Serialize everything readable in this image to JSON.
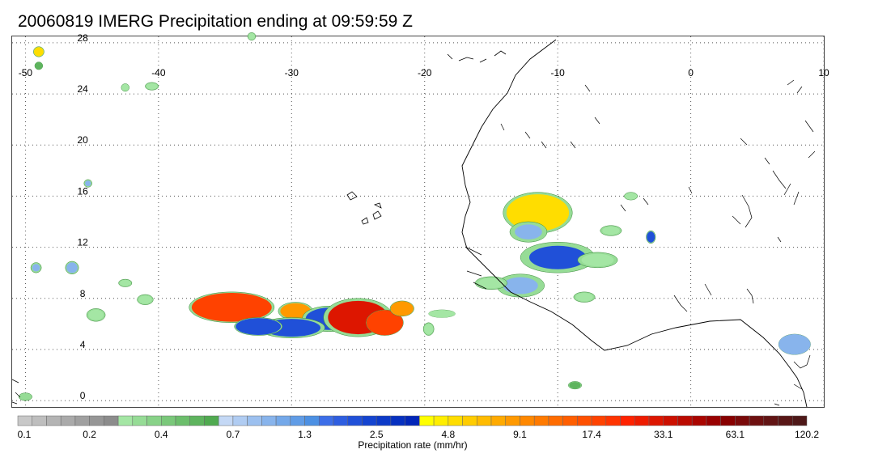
{
  "title": "20060819 IMERG Precipitation ending at 09:59:59 Z",
  "map": {
    "lon_range": [
      -51,
      10
    ],
    "lat_range": [
      -0.5,
      28.5
    ],
    "lon_ticks": [
      {
        "value": -50,
        "label": "-50"
      },
      {
        "value": -40,
        "label": "-40"
      },
      {
        "value": -30,
        "label": "-30"
      },
      {
        "value": -20,
        "label": "-20"
      },
      {
        "value": -10,
        "label": "-10"
      },
      {
        "value": 0,
        "label": "0"
      },
      {
        "value": 10,
        "label": "10"
      }
    ],
    "lat_ticks": [
      {
        "value": 0,
        "label": "0"
      },
      {
        "value": 4,
        "label": "4"
      },
      {
        "value": 8,
        "label": "8"
      },
      {
        "value": 12,
        "label": "12"
      },
      {
        "value": 16,
        "label": "16"
      },
      {
        "value": 20,
        "label": "20"
      },
      {
        "value": 24,
        "label": "24"
      },
      {
        "value": 28,
        "label": "28"
      }
    ],
    "grid": "dotted",
    "coastline_color": "#000000",
    "precip_cells": [
      {
        "lon": -34.5,
        "lat": 7.3,
        "rlon": 3.2,
        "rlat": 1.2,
        "intensity": 20
      },
      {
        "lon": -29.7,
        "lat": 7.0,
        "rlon": 1.3,
        "rlat": 0.7,
        "intensity": 12
      },
      {
        "lon": -27.2,
        "lat": 6.4,
        "rlon": 2.0,
        "rlat": 1.0,
        "intensity": 3
      },
      {
        "lon": -30.0,
        "lat": 5.7,
        "rlon": 2.5,
        "rlat": 0.8,
        "intensity": 3
      },
      {
        "lon": -32.5,
        "lat": 5.8,
        "rlon": 1.8,
        "rlat": 0.7,
        "intensity": 2.5
      },
      {
        "lon": -25.0,
        "lat": 6.5,
        "rlon": 2.6,
        "rlat": 1.5,
        "intensity": 45
      },
      {
        "lon": -23.0,
        "lat": 6.1,
        "rlon": 1.4,
        "rlat": 1.0,
        "intensity": 18
      },
      {
        "lon": -21.7,
        "lat": 7.2,
        "rlon": 0.9,
        "rlat": 0.6,
        "intensity": 10
      },
      {
        "lon": -11.5,
        "lat": 14.7,
        "rlon": 2.6,
        "rlat": 1.6,
        "intensity": 6
      },
      {
        "lon": -10.0,
        "lat": 11.2,
        "rlon": 2.8,
        "rlat": 1.2,
        "intensity": 4
      },
      {
        "lon": -12.8,
        "lat": 9.0,
        "rlon": 1.8,
        "rlat": 0.9,
        "intensity": 2
      },
      {
        "lon": -12.2,
        "lat": 13.2,
        "rlon": 1.4,
        "rlat": 0.8,
        "intensity": 2
      },
      {
        "lon": -3.0,
        "lat": 12.8,
        "rlon": 0.35,
        "rlat": 0.5,
        "intensity": 3
      },
      {
        "lon": 7.8,
        "lat": 4.4,
        "rlon": 1.2,
        "rlat": 0.8,
        "intensity": 1
      },
      {
        "lon": -45.3,
        "lat": 17.0,
        "rlon": 0.3,
        "rlat": 0.3,
        "intensity": 2
      },
      {
        "lon": -49.2,
        "lat": 10.4,
        "rlon": 0.4,
        "rlat": 0.4,
        "intensity": 2
      },
      {
        "lon": -46.5,
        "lat": 10.4,
        "rlon": 0.5,
        "rlat": 0.5,
        "intensity": 1.5
      },
      {
        "lon": -49.0,
        "lat": 27.3,
        "rlon": 0.4,
        "rlat": 0.4,
        "intensity": 6
      },
      {
        "lon": -49.0,
        "lat": 26.2,
        "rlon": 0.3,
        "rlat": 0.3,
        "intensity": 0.5
      },
      {
        "lon": -44.7,
        "lat": 6.7,
        "rlon": 0.7,
        "rlat": 0.5,
        "intensity": 0.4
      },
      {
        "lon": -41.0,
        "lat": 7.9,
        "rlon": 0.6,
        "rlat": 0.4,
        "intensity": 0.4
      },
      {
        "lon": -42.5,
        "lat": 9.2,
        "rlon": 0.5,
        "rlat": 0.3,
        "intensity": 0.4
      },
      {
        "lon": -18.7,
        "lat": 6.8,
        "rlon": 1.0,
        "rlat": 0.3,
        "intensity": 0.25
      },
      {
        "lon": -19.7,
        "lat": 5.6,
        "rlon": 0.4,
        "rlat": 0.5,
        "intensity": 0.4
      },
      {
        "lon": -15.0,
        "lat": 9.2,
        "rlon": 1.2,
        "rlat": 0.5,
        "intensity": 0.4
      },
      {
        "lon": -7.0,
        "lat": 11.0,
        "rlon": 1.5,
        "rlat": 0.6,
        "intensity": 0.4
      },
      {
        "lon": -6.0,
        "lat": 13.3,
        "rlon": 0.8,
        "rlat": 0.4,
        "intensity": 0.4
      },
      {
        "lon": -8.0,
        "lat": 8.1,
        "rlon": 0.8,
        "rlat": 0.4,
        "intensity": 0.4
      },
      {
        "lon": -4.5,
        "lat": 16.0,
        "rlon": 0.5,
        "rlat": 0.3,
        "intensity": 0.3
      },
      {
        "lon": -8.7,
        "lat": 1.2,
        "rlon": 0.5,
        "rlat": 0.3,
        "intensity": 0.7
      },
      {
        "lon": -40.5,
        "lat": 24.6,
        "rlon": 0.5,
        "rlat": 0.3,
        "intensity": 0.4
      },
      {
        "lon": -33.0,
        "lat": 28.5,
        "rlon": 0.3,
        "rlat": 0.3,
        "intensity": 0.4
      },
      {
        "lon": -42.5,
        "lat": 24.5,
        "rlon": 0.3,
        "rlat": 0.3,
        "intensity": 0.3
      },
      {
        "lon": -50.0,
        "lat": 0.3,
        "rlon": 0.5,
        "rlat": 0.3,
        "intensity": 0.2
      }
    ]
  },
  "colorbar": {
    "title": "Precipitation rate (mm/hr)",
    "colors": [
      "#c8c8c8",
      "#bebebe",
      "#b4b4b4",
      "#aaaaaa",
      "#a0a0a0",
      "#969696",
      "#8c8c8c",
      "#a4e6a4",
      "#96dc96",
      "#88d288",
      "#7ac87a",
      "#6cbe6c",
      "#5eb45e",
      "#50aa50",
      "#c4d8f5",
      "#b0ccf2",
      "#9cc0ef",
      "#88b4ec",
      "#74a8e9",
      "#609ce6",
      "#4c90e3",
      "#3c6ee8",
      "#2e5ee0",
      "#2050d8",
      "#1444d0",
      "#0c3ac8",
      "#0630c0",
      "#0226b8",
      "#ffff00",
      "#ffee00",
      "#ffdd00",
      "#ffcc00",
      "#ffbb00",
      "#ffaa00",
      "#ff9900",
      "#ff8800",
      "#ff7a00",
      "#ff6c00",
      "#ff5e00",
      "#ff5000",
      "#ff4200",
      "#ff3400",
      "#ff2200",
      "#ee1c00",
      "#dd1600",
      "#cc1000",
      "#bb0a00",
      "#aa0500",
      "#990000",
      "#880000",
      "#7a0a0a",
      "#6e1010",
      "#621414",
      "#581616",
      "#4e1818"
    ],
    "tick_labels": [
      "0.1",
      "0.2",
      "0.4",
      "0.7",
      "1.3",
      "2.5",
      "4.8",
      "9.1",
      "17.4",
      "33.1",
      "63.1",
      "120.2"
    ]
  }
}
